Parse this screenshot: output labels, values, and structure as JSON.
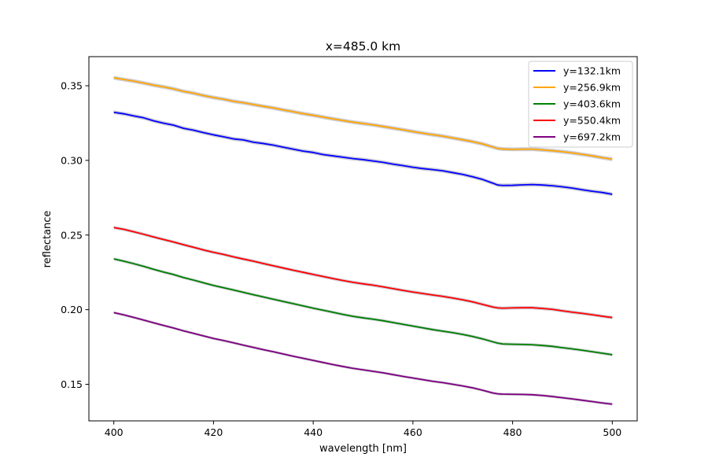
{
  "chart_data": {
    "type": "line",
    "title": "x=485.0 km",
    "xlabel": "wavelength [nm]",
    "ylabel": "reflectance",
    "xlim": [
      395,
      505
    ],
    "ylim": [
      0.1255,
      0.3695
    ],
    "x_ticks": [
      400,
      420,
      440,
      460,
      480,
      500
    ],
    "x_tick_labels": [
      "400",
      "420",
      "440",
      "460",
      "480",
      "500"
    ],
    "y_ticks": [
      0.15,
      0.2,
      0.25,
      0.3,
      0.35
    ],
    "y_tick_labels": [
      "0.15",
      "0.20",
      "0.25",
      "0.30",
      "0.35"
    ],
    "grid": false,
    "legend_position": "top-right",
    "uncertainty_band_color": "#c8c8d0",
    "x": [
      400,
      402,
      404,
      406,
      408,
      410,
      412,
      414,
      416,
      418,
      420,
      422,
      424,
      426,
      428,
      430,
      432,
      434,
      436,
      438,
      440,
      442,
      444,
      446,
      448,
      450,
      452,
      454,
      456,
      458,
      460,
      462,
      464,
      466,
      468,
      470,
      472,
      474,
      476,
      477,
      478,
      480,
      482,
      484,
      486,
      488,
      490,
      492,
      494,
      496,
      498,
      500
    ],
    "series": [
      {
        "name": "y=132.1km",
        "color": "#0000ff",
        "band_halfwidth": 0.0013,
        "values": [
          0.3322,
          0.3312,
          0.3298,
          0.3285,
          0.3265,
          0.3249,
          0.3236,
          0.3215,
          0.3202,
          0.3186,
          0.3171,
          0.3158,
          0.3144,
          0.3137,
          0.3122,
          0.3113,
          0.3102,
          0.3088,
          0.3075,
          0.3062,
          0.3053,
          0.3039,
          0.303,
          0.3021,
          0.3012,
          0.3005,
          0.2996,
          0.2987,
          0.2975,
          0.2965,
          0.2954,
          0.2945,
          0.2938,
          0.293,
          0.2918,
          0.2906,
          0.289,
          0.2872,
          0.2848,
          0.2835,
          0.2832,
          0.2833,
          0.2836,
          0.2838,
          0.2835,
          0.283,
          0.2823,
          0.2814,
          0.2803,
          0.2793,
          0.2785,
          0.2773
        ]
      },
      {
        "name": "y=256.9km",
        "color": "#ffa500",
        "band_halfwidth": 0.0013,
        "values": [
          0.3553,
          0.3542,
          0.3531,
          0.3518,
          0.3504,
          0.3492,
          0.3479,
          0.3462,
          0.345,
          0.3434,
          0.3421,
          0.341,
          0.3396,
          0.3386,
          0.3374,
          0.3362,
          0.3351,
          0.3338,
          0.3326,
          0.3313,
          0.3302,
          0.329,
          0.3278,
          0.3267,
          0.3256,
          0.3247,
          0.3238,
          0.3227,
          0.3216,
          0.3205,
          0.3193,
          0.3182,
          0.3172,
          0.3162,
          0.315,
          0.3138,
          0.3125,
          0.311,
          0.309,
          0.308,
          0.3076,
          0.3074,
          0.3075,
          0.3075,
          0.307,
          0.3065,
          0.3058,
          0.305,
          0.304,
          0.303,
          0.3018,
          0.3008
        ]
      },
      {
        "name": "y=403.6km",
        "color": "#008000",
        "band_halfwidth": 0.001,
        "values": [
          0.234,
          0.2325,
          0.2308,
          0.229,
          0.227,
          0.2252,
          0.2235,
          0.2215,
          0.2198,
          0.218,
          0.2162,
          0.2147,
          0.2132,
          0.2116,
          0.21,
          0.2085,
          0.207,
          0.2055,
          0.204,
          0.2025,
          0.201,
          0.1996,
          0.1982,
          0.1968,
          0.1955,
          0.1945,
          0.1936,
          0.1926,
          0.1914,
          0.1902,
          0.189,
          0.1878,
          0.1866,
          0.1856,
          0.1846,
          0.1834,
          0.182,
          0.1804,
          0.1785,
          0.1776,
          0.177,
          0.1768,
          0.1767,
          0.1765,
          0.176,
          0.1754,
          0.1745,
          0.1737,
          0.1728,
          0.1718,
          0.1708,
          0.1698
        ]
      },
      {
        "name": "y=550.4km",
        "color": "#ff0000",
        "band_halfwidth": 0.0011,
        "values": [
          0.255,
          0.2538,
          0.2522,
          0.2505,
          0.2487,
          0.247,
          0.2453,
          0.2435,
          0.2418,
          0.24,
          0.2384,
          0.237,
          0.2354,
          0.2339,
          0.2325,
          0.2309,
          0.2294,
          0.2279,
          0.2264,
          0.225,
          0.2236,
          0.2222,
          0.2208,
          0.2195,
          0.2183,
          0.2173,
          0.2164,
          0.2153,
          0.2141,
          0.2129,
          0.2118,
          0.2108,
          0.2098,
          0.2089,
          0.2078,
          0.2066,
          0.2052,
          0.2035,
          0.2018,
          0.2012,
          0.201,
          0.2012,
          0.2013,
          0.2013,
          0.2008,
          0.2002,
          0.1992,
          0.1983,
          0.1975,
          0.1966,
          0.1956,
          0.1947
        ]
      },
      {
        "name": "y=697.2km",
        "color": "#800080",
        "band_halfwidth": 0.0009,
        "values": [
          0.198,
          0.1965,
          0.1948,
          0.193,
          0.1912,
          0.1894,
          0.1877,
          0.1858,
          0.1841,
          0.1824,
          0.1807,
          0.1793,
          0.1778,
          0.1762,
          0.1747,
          0.1732,
          0.1718,
          0.1703,
          0.1688,
          0.1674,
          0.166,
          0.1646,
          0.1632,
          0.1619,
          0.1607,
          0.1597,
          0.1587,
          0.1577,
          0.1565,
          0.1553,
          0.1542,
          0.1531,
          0.152,
          0.1511,
          0.15,
          0.1489,
          0.1476,
          0.146,
          0.1442,
          0.1436,
          0.1434,
          0.1433,
          0.1432,
          0.143,
          0.1425,
          0.1418,
          0.141,
          0.1402,
          0.1393,
          0.1384,
          0.1375,
          0.1367
        ]
      }
    ]
  }
}
